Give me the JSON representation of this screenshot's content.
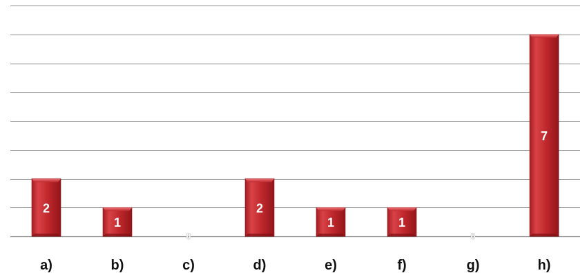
{
  "chart_data": {
    "type": "bar",
    "categories": [
      "a)",
      "b)",
      "c)",
      "d)",
      "e)",
      "f)",
      "g)",
      "h)"
    ],
    "values": [
      2,
      1,
      0,
      2,
      1,
      1,
      0,
      7
    ],
    "data_labels": [
      "2",
      "1",
      "0",
      "2",
      "1",
      "1",
      "0",
      "7"
    ],
    "ylim": [
      0,
      8
    ],
    "grid": true,
    "legend": "none",
    "bar_color": "#c0282d",
    "bar_color_light": "#e85a5e",
    "bar_color_dark": "#8e1519"
  }
}
